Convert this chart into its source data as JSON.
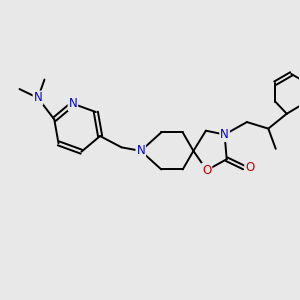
{
  "background_color": "#e8e8e8",
  "bond_color": "#000000",
  "nitrogen_color": "#0000cc",
  "oxygen_color": "#cc0000",
  "line_width": 1.4,
  "figsize": [
    3.0,
    3.0
  ],
  "dpi": 100,
  "xlim": [
    0,
    10
  ],
  "ylim": [
    0,
    10
  ]
}
